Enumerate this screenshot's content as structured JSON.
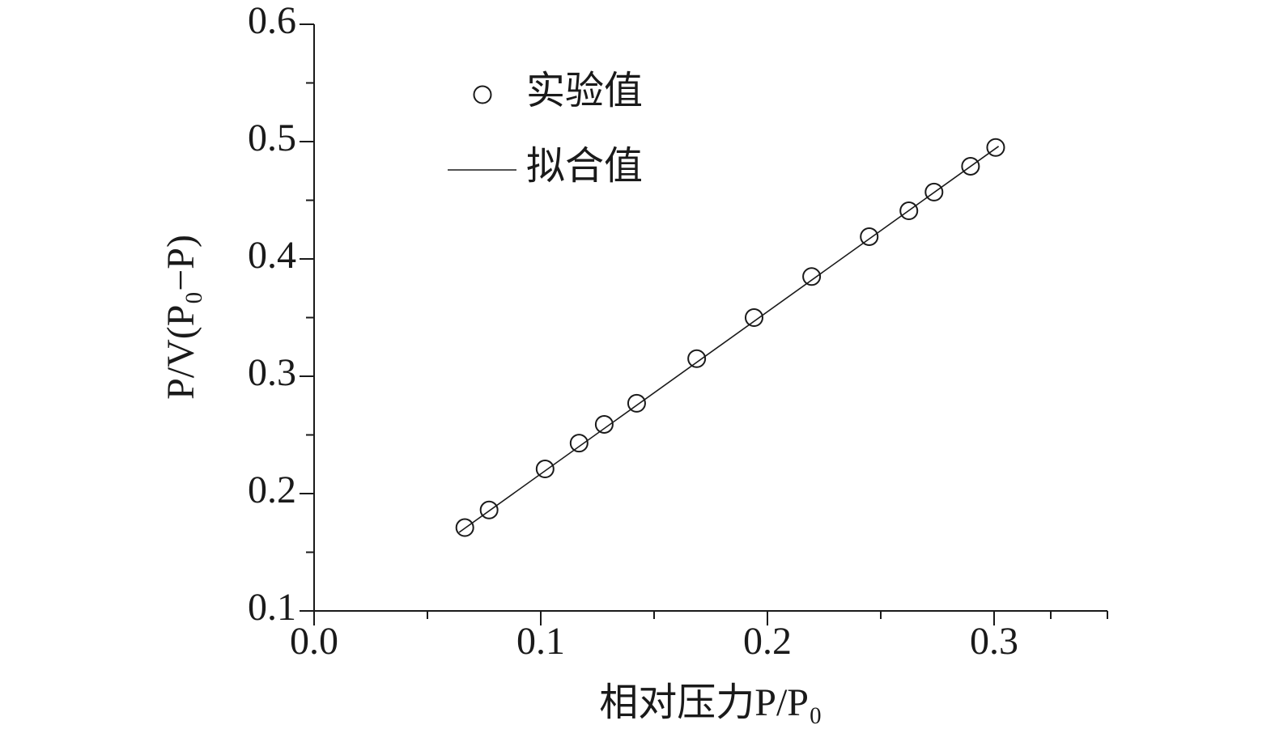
{
  "chart_data": {
    "type": "scatter",
    "xlabel": "相对压力P/P₀",
    "ylabel": "P/V(P₀−P)",
    "xlim": [
      0,
      0.35
    ],
    "ylim": [
      0.1,
      0.6
    ],
    "xticks": [
      {
        "value": 0,
        "label": "0.0"
      },
      0.1,
      0.2,
      0.3
    ],
    "yticks": [
      0.1,
      0.2,
      0.3,
      0.4,
      0.5,
      0.6
    ],
    "legend": "upper left",
    "series": [
      {
        "name": "实验值",
        "type": "scatter",
        "color": "#1a1a1a",
        "x": [
          0.0665,
          0.0772,
          0.1019,
          0.1169,
          0.128,
          0.1423,
          0.1688,
          0.1941,
          0.2195,
          0.2449,
          0.2624,
          0.2735,
          0.2896,
          0.3007
        ],
        "values": [
          0.171,
          0.186,
          0.221,
          0.243,
          0.259,
          0.277,
          0.315,
          0.35,
          0.385,
          0.419,
          0.441,
          0.457,
          0.479,
          0.495
        ]
      },
      {
        "name": "拟合值",
        "type": "line",
        "color": "#1a1a1a",
        "x": [
          0.064,
          0.302
        ],
        "values": [
          0.167,
          0.496
        ]
      }
    ]
  }
}
